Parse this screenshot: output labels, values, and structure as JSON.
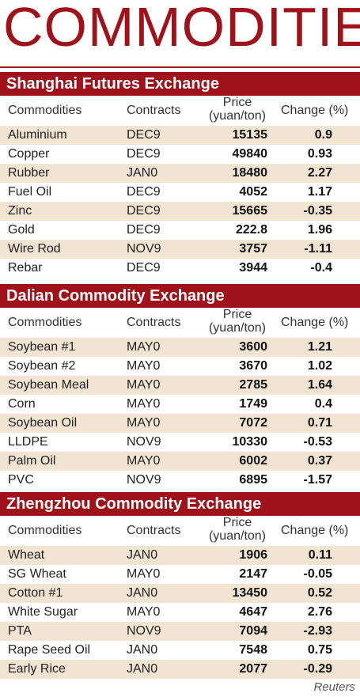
{
  "title": "COMMODITIES",
  "headers": {
    "commodities": "Commodities",
    "contracts": "Contracts",
    "price_line1": "Price",
    "price_line2": "(yuan/ton)",
    "change": "Change (%)"
  },
  "sections": [
    {
      "name": "Shanghai Futures Exchange",
      "rows": [
        {
          "commodity": "Aluminium",
          "contract": "DEC9",
          "price": "15135",
          "change": "0.9"
        },
        {
          "commodity": "Copper",
          "contract": "DEC9",
          "price": "49840",
          "change": "0.93"
        },
        {
          "commodity": "Rubber",
          "contract": "JAN0",
          "price": "18480",
          "change": "2.27"
        },
        {
          "commodity": "Fuel Oil",
          "contract": "DEC9",
          "price": "4052",
          "change": "1.17"
        },
        {
          "commodity": "Zinc",
          "contract": "DEC9",
          "price": "15665",
          "change": "-0.35"
        },
        {
          "commodity": "Gold",
          "contract": "DEC9",
          "price": "222.8",
          "change": "1.96"
        },
        {
          "commodity": "Wire Rod",
          "contract": "NOV9",
          "price": "3757",
          "change": "-1.11"
        },
        {
          "commodity": "Rebar",
          "contract": "DEC9",
          "price": "3944",
          "change": "-0.4"
        }
      ]
    },
    {
      "name": "Dalian Commodity Exchange",
      "rows": [
        {
          "commodity": "Soybean #1",
          "contract": "MAY0",
          "price": "3600",
          "change": "1.21"
        },
        {
          "commodity": "Soybean #2",
          "contract": "MAY0",
          "price": "3670",
          "change": "1.02"
        },
        {
          "commodity": "Soybean Meal",
          "contract": "MAY0",
          "price": "2785",
          "change": "1.64"
        },
        {
          "commodity": "Corn",
          "contract": "MAY0",
          "price": "1749",
          "change": "0.4"
        },
        {
          "commodity": "Soybean Oil",
          "contract": "MAY0",
          "price": "7072",
          "change": "0.71"
        },
        {
          "commodity": "LLDPE",
          "contract": "NOV9",
          "price": "10330",
          "change": "-0.53"
        },
        {
          "commodity": "Palm Oil",
          "contract": "MAY0",
          "price": "6002",
          "change": "0.37"
        },
        {
          "commodity": "PVC",
          "contract": "NOV9",
          "price": "6895",
          "change": "-1.57"
        }
      ]
    },
    {
      "name": "Zhengzhou Commodity Exchange",
      "rows": [
        {
          "commodity": "Wheat",
          "contract": "JAN0",
          "price": "1906",
          "change": "0.11"
        },
        {
          "commodity": "SG Wheat",
          "contract": "MAY0",
          "price": "2147",
          "change": "-0.05"
        },
        {
          "commodity": "Cotton #1",
          "contract": "JAN0",
          "price": "13450",
          "change": "0.52"
        },
        {
          "commodity": "White Sugar",
          "contract": "MAY0",
          "price": "4647",
          "change": "2.76"
        },
        {
          "commodity": "PTA",
          "contract": "NOV9",
          "price": "7094",
          "change": "-2.93"
        },
        {
          "commodity": "Rape Seed Oil",
          "contract": "JAN0",
          "price": "7548",
          "change": "0.75"
        },
        {
          "commodity": "Early Rice",
          "contract": "JAN0",
          "price": "2077",
          "change": "-0.29"
        }
      ]
    }
  ],
  "source": "Reuters",
  "colors": {
    "accent": "#a0121a",
    "row_tint": "#f2e4d2"
  }
}
